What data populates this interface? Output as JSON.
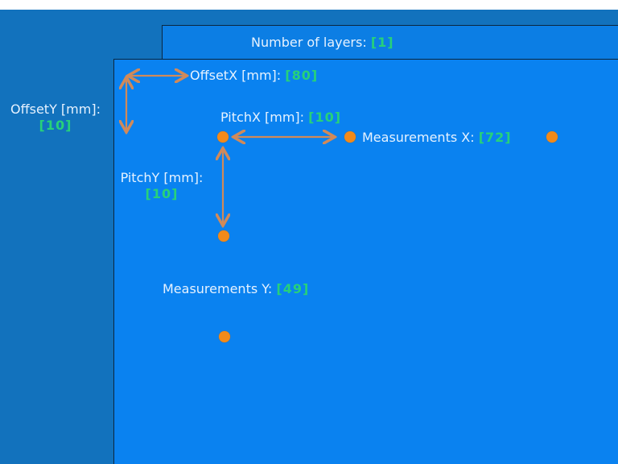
{
  "layers": {
    "label": "Number of layers:",
    "value": "[1]"
  },
  "offset_x": {
    "label": "OffsetX [mm]:",
    "value": "[80]"
  },
  "offset_y": {
    "label": "OffsetY [mm]:",
    "value": "[10]"
  },
  "pitch_x": {
    "label": "PitchX [mm]:",
    "value": "[10]"
  },
  "pitch_y": {
    "label": "PitchY [mm]:",
    "value": "[10]"
  },
  "measurements_x": {
    "label": "Measurements X:",
    "value": "[72]"
  },
  "measurements_y": {
    "label": "Measurements Y:",
    "value": "[49]"
  },
  "colors": {
    "background": "#1272bd",
    "panel": "#0a82f0",
    "value_text": "#27d17a",
    "marker": "#f28a1a",
    "arrow": "#d08a5a"
  }
}
